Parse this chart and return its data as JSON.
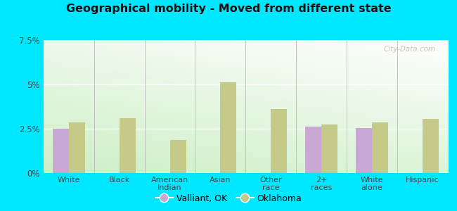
{
  "title": "Geographical mobility - Moved from different state",
  "categories": [
    "White",
    "Black",
    "American\nIndian",
    "Asian",
    "Other\nrace",
    "2+\nraces",
    "White\nalone",
    "Hispanic"
  ],
  "valliant_values": [
    2.5,
    0,
    0,
    0,
    0,
    2.6,
    2.55,
    0
  ],
  "oklahoma_values": [
    2.85,
    3.1,
    1.85,
    5.1,
    3.6,
    2.75,
    2.85,
    3.05
  ],
  "valliant_color": "#c9a8d4",
  "oklahoma_color": "#c5ca88",
  "ylim": [
    0,
    7.5
  ],
  "yticks": [
    0,
    2.5,
    5.0,
    7.5
  ],
  "ytick_labels": [
    "0%",
    "2.5%",
    "5%",
    "7.5%"
  ],
  "outer_bg": "#00e8ff",
  "legend_valliant": "Valliant, OK",
  "legend_oklahoma": "Oklahoma",
  "bar_width": 0.32,
  "watermark": "City-Data.com",
  "bg_colors_left": [
    "#c8e8c0",
    "#e8f5e0"
  ],
  "bg_colors_right": [
    "#f0f8f0",
    "#ffffff"
  ],
  "grid_color": "#dddddd"
}
